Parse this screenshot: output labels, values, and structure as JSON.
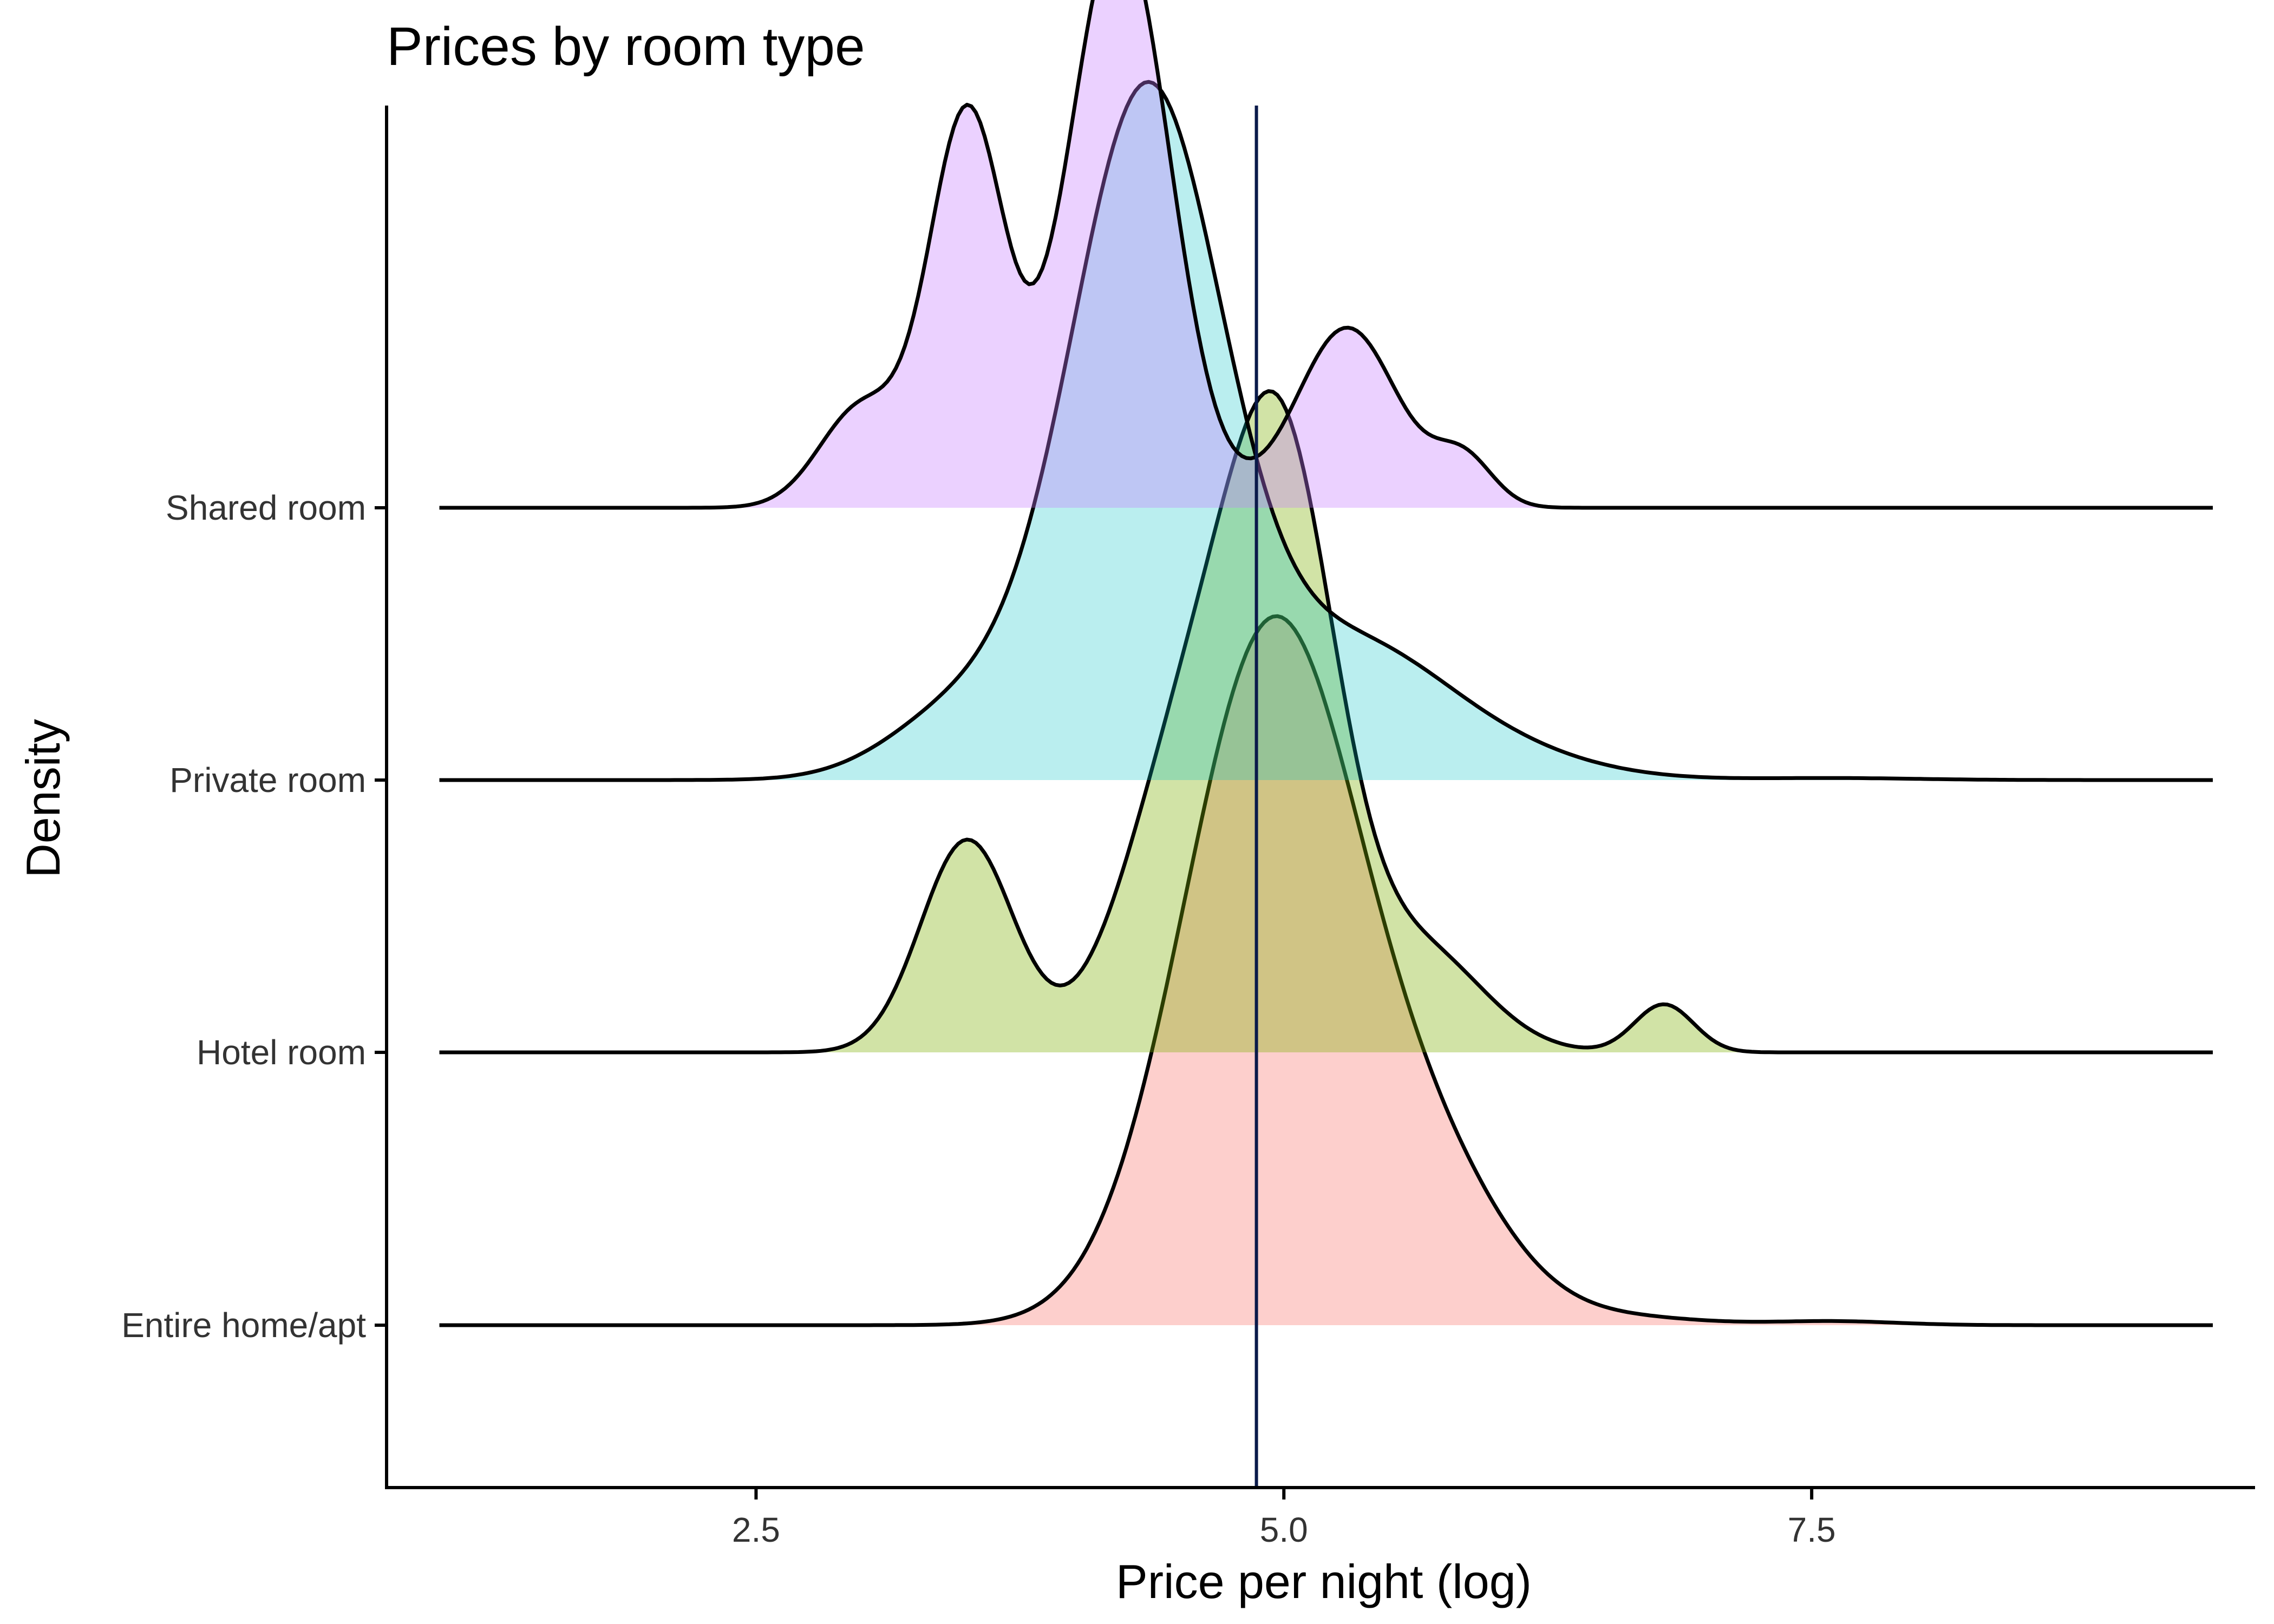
{
  "chart_data": {
    "type": "ridgeline",
    "title": "Prices by room type",
    "xlabel": "Price per night (log)",
    "ylabel": "Density",
    "xlim": [
      0.75,
      9.6
    ],
    "x_ticks": [
      2.5,
      5.0,
      7.5
    ],
    "x_tick_labels": [
      "2.5",
      "5.0",
      "7.5"
    ],
    "density_range": [
      1.0,
      9.4
    ],
    "reference_line_x": 4.87,
    "reference_line_color": "#0a1a4a",
    "categories": [
      "Entire home/apt",
      "Hotel room",
      "Private room",
      "Shared room"
    ],
    "series": [
      {
        "name": "Entire home/apt",
        "color": "#f8766d",
        "fill_opacity": 0.35,
        "peaks": [
          {
            "mu": 4.95,
            "sigma": 0.42,
            "h": 1.75
          },
          {
            "mu": 5.75,
            "sigma": 0.35,
            "h": 0.28
          },
          {
            "mu": 6.6,
            "sigma": 0.35,
            "h": 0.02
          },
          {
            "mu": 7.6,
            "sigma": 0.3,
            "h": 0.01
          }
        ]
      },
      {
        "name": "Hotel room",
        "color": "#7cae00",
        "fill_opacity": 0.35,
        "peaks": [
          {
            "mu": 3.5,
            "sigma": 0.22,
            "h": 0.53
          },
          {
            "mu": 5.0,
            "sigma": 0.26,
            "h": 1.35
          },
          {
            "mu": 4.55,
            "sigma": 0.3,
            "h": 0.75
          },
          {
            "mu": 5.65,
            "sigma": 0.3,
            "h": 0.25
          },
          {
            "mu": 6.8,
            "sigma": 0.14,
            "h": 0.12
          }
        ]
      },
      {
        "name": "Private room",
        "color": "#00bfc4",
        "fill_opacity": 0.27,
        "peaks": [
          {
            "mu": 4.35,
            "sigma": 0.36,
            "h": 1.7
          },
          {
            "mu": 3.5,
            "sigma": 0.35,
            "h": 0.18
          },
          {
            "mu": 5.3,
            "sigma": 0.45,
            "h": 0.32
          },
          {
            "mu": 6.0,
            "sigma": 0.45,
            "h": 0.06
          },
          {
            "mu": 7.6,
            "sigma": 0.4,
            "h": 0.005
          }
        ]
      },
      {
        "name": "Shared room",
        "color": "#c77cff",
        "fill_opacity": 0.35,
        "peaks": [
          {
            "mu": 3.5,
            "sigma": 0.18,
            "h": 0.98
          },
          {
            "mu": 4.22,
            "sigma": 0.24,
            "h": 1.45
          },
          {
            "mu": 3.0,
            "sigma": 0.2,
            "h": 0.25
          },
          {
            "mu": 5.3,
            "sigma": 0.24,
            "h": 0.45
          },
          {
            "mu": 5.85,
            "sigma": 0.14,
            "h": 0.12
          }
        ]
      }
    ]
  }
}
